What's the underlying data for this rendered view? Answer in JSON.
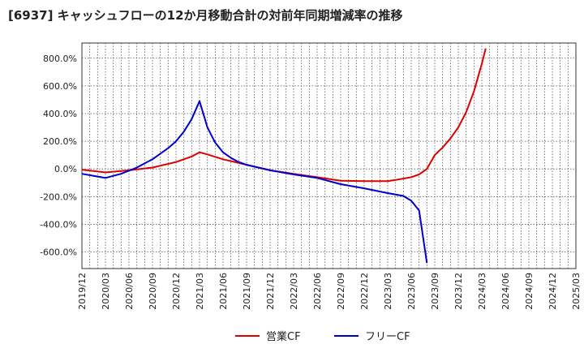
{
  "chart_data": {
    "type": "line",
    "title": "[6937]  キャッシュフローの12か月移動合計の対前年同期増減率の推移",
    "xlabel": "",
    "ylabel": "",
    "ylim": [
      -720,
      910
    ],
    "y_ticks": [
      800,
      600,
      400,
      200,
      0,
      -200,
      -400,
      -600
    ],
    "y_tick_labels": [
      "800.0%",
      "600.0%",
      "400.0%",
      "200.0%",
      "0.0%",
      "-200.0%",
      "-400.0%",
      "-600.0%"
    ],
    "x_tick_labels": [
      "2019/12",
      "2020/03",
      "2020/06",
      "2020/09",
      "2020/12",
      "2021/03",
      "2021/06",
      "2021/09",
      "2021/12",
      "2022/03",
      "2022/06",
      "2022/09",
      "2022/12",
      "2023/03",
      "2023/06",
      "2023/09",
      "2023/12",
      "2024/03",
      "2024/06",
      "2024/09",
      "2024/12",
      "2025/03"
    ],
    "x_months_start": "2019/12",
    "x_months_range": [
      0,
      63
    ],
    "grid": true,
    "legend_position": "bottom-center",
    "series": [
      {
        "name": "営業CF",
        "color": "#dd0000",
        "points": [
          [
            0,
            -5
          ],
          [
            3,
            -25
          ],
          [
            6,
            -10
          ],
          [
            9,
            10
          ],
          [
            12,
            50
          ],
          [
            14,
            90
          ],
          [
            15,
            120
          ],
          [
            16,
            105
          ],
          [
            18,
            70
          ],
          [
            21,
            30
          ],
          [
            24,
            -10
          ],
          [
            27,
            -35
          ],
          [
            30,
            -60
          ],
          [
            33,
            -85
          ],
          [
            36,
            -88
          ],
          [
            39,
            -88
          ],
          [
            40,
            -80
          ],
          [
            42,
            -60
          ],
          [
            43,
            -40
          ],
          [
            44,
            0
          ],
          [
            45,
            100
          ],
          [
            46,
            155
          ],
          [
            47,
            220
          ],
          [
            48,
            300
          ],
          [
            49,
            410
          ],
          [
            50,
            560
          ],
          [
            51,
            760
          ],
          [
            51.5,
            870
          ]
        ]
      },
      {
        "name": "フリーCF",
        "color": "#0000cc",
        "points": [
          [
            0,
            -35
          ],
          [
            3,
            -65
          ],
          [
            5,
            -35
          ],
          [
            7,
            10
          ],
          [
            9,
            70
          ],
          [
            11,
            150
          ],
          [
            12,
            200
          ],
          [
            13,
            270
          ],
          [
            14,
            360
          ],
          [
            15,
            490
          ],
          [
            16,
            300
          ],
          [
            17,
            190
          ],
          [
            18,
            120
          ],
          [
            19,
            80
          ],
          [
            20,
            50
          ],
          [
            21,
            30
          ],
          [
            24,
            -10
          ],
          [
            27,
            -40
          ],
          [
            30,
            -65
          ],
          [
            33,
            -110
          ],
          [
            36,
            -140
          ],
          [
            39,
            -175
          ],
          [
            41,
            -195
          ],
          [
            42,
            -230
          ],
          [
            43,
            -300
          ],
          [
            44,
            -680
          ]
        ]
      }
    ]
  }
}
